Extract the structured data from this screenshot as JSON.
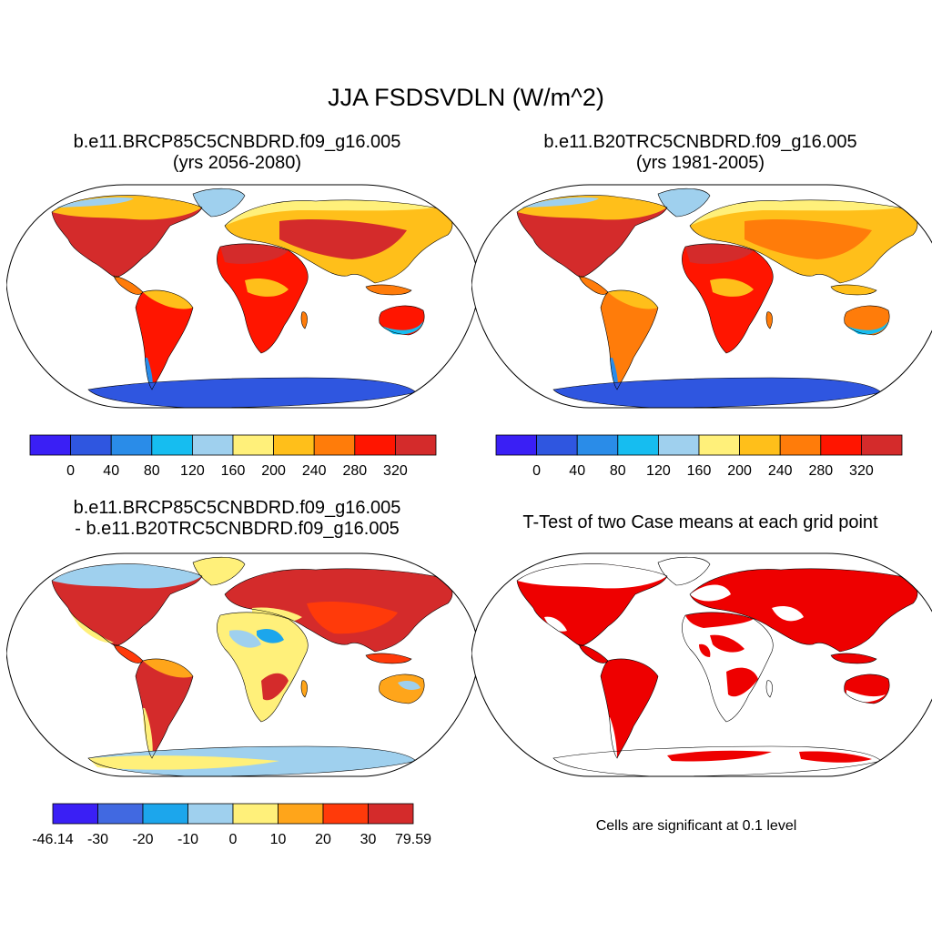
{
  "figure": {
    "title": "JJA FSDSVDLN (W/m^2)"
  },
  "panels": [
    {
      "id": "test",
      "title_line1": "b.e11.BRCP85C5CNBDRD.f09_g16.005",
      "title_line2": "(yrs 2056-2080)"
    },
    {
      "id": "control",
      "title_line1": "b.e11.B20TRC5CNBDRD.f09_g16.005",
      "title_line2": "(yrs 1981-2005)"
    },
    {
      "id": "difference",
      "title_line1": "b.e11.BRCP85C5CNBDRD.f09_g16.005",
      "title_line2": "- b.e11.B20TRC5CNBDRD.f09_g16.005"
    },
    {
      "id": "ttest",
      "title_line1": "T-Test of two Case means at each grid point",
      "footnote": "Cells are significant at 0.1 level"
    }
  ],
  "colorbars": {
    "absolute": {
      "labels": [
        "0",
        "40",
        "80",
        "120",
        "160",
        "200",
        "240",
        "280",
        "320"
      ],
      "colors": [
        "#3a1ff5",
        "#2f56e0",
        "#2a8ce8",
        "#16bdf0",
        "#9fd0ee",
        "#fff07a",
        "#ffbf1a",
        "#ff7c0a",
        "#ff1500",
        "#d42b2b"
      ]
    },
    "difference": {
      "labels": [
        "-46.14",
        "-30",
        "-20",
        "-10",
        "0",
        "10",
        "20",
        "30",
        "79.59"
      ],
      "colors": [
        "#3a1ff5",
        "#4169e1",
        "#1ca6ec",
        "#9fd0ee",
        "#fff07a",
        "#ffa51a",
        "#ff3a0a",
        "#d42b2b"
      ]
    }
  },
  "significance_color": "#ee0000"
}
